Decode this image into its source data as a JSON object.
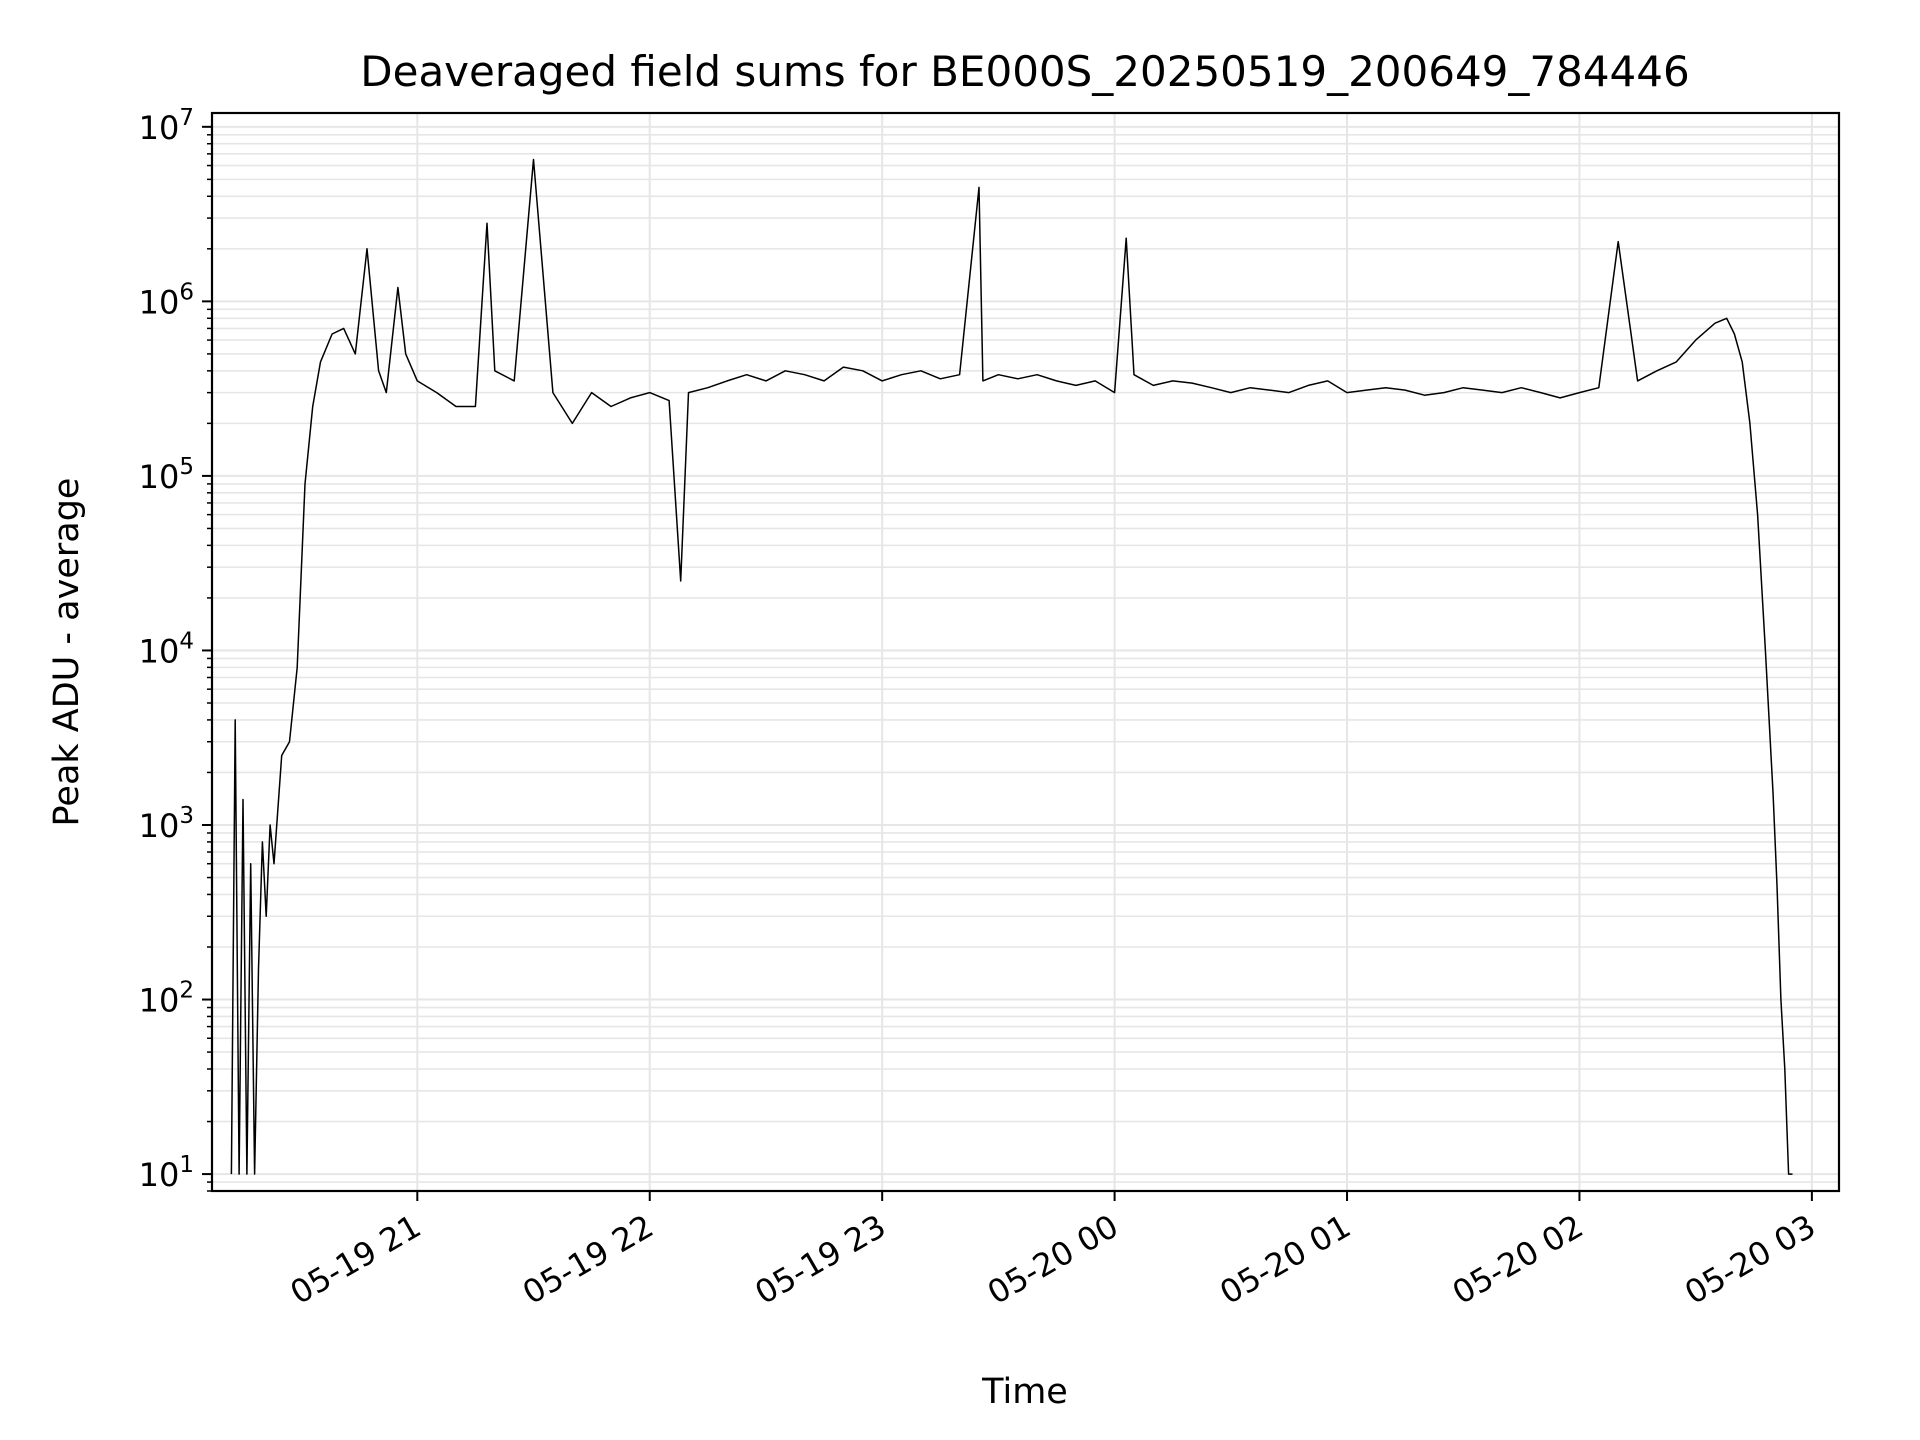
{
  "chart_data": {
    "type": "line",
    "title": "Deaveraged field sums for BE000S_20250519_200649_784446",
    "xlabel": "Time",
    "ylabel": "Peak ADU - average",
    "yscale": "log",
    "grid": true,
    "line_color": "#000000",
    "grid_color": "#e6e6e6",
    "ylim": [
      8,
      12000000
    ],
    "xlim": [
      "05-19 20:07",
      "05-20 03:07"
    ],
    "y_ticks": [
      {
        "value": 10,
        "base": "10",
        "exp": "1"
      },
      {
        "value": 100,
        "base": "10",
        "exp": "2"
      },
      {
        "value": 1000,
        "base": "10",
        "exp": "3"
      },
      {
        "value": 10000,
        "base": "10",
        "exp": "4"
      },
      {
        "value": 100000,
        "base": "10",
        "exp": "5"
      },
      {
        "value": 1000000,
        "base": "10",
        "exp": "6"
      },
      {
        "value": 10000000,
        "base": "10",
        "exp": "7"
      }
    ],
    "x_ticks": [
      {
        "time": "05-19 21:00",
        "label": "05-19 21"
      },
      {
        "time": "05-19 22:00",
        "label": "05-19 22"
      },
      {
        "time": "05-19 23:00",
        "label": "05-19 23"
      },
      {
        "time": "05-20 00:00",
        "label": "05-20 00"
      },
      {
        "time": "05-20 01:00",
        "label": "05-20 01"
      },
      {
        "time": "05-20 02:00",
        "label": "05-20 02"
      },
      {
        "time": "05-20 03:00",
        "label": "05-20 03"
      }
    ],
    "series": [
      {
        "x": [
          "05-19 20:12",
          "05-19 20:13",
          "05-19 20:14",
          "05-19 20:15",
          "05-19 20:16",
          "05-19 20:17",
          "05-19 20:18",
          "05-19 20:19",
          "05-19 20:20",
          "05-19 20:21",
          "05-19 20:22",
          "05-19 20:23",
          "05-19 20:25",
          "05-19 20:27",
          "05-19 20:29",
          "05-19 20:31",
          "05-19 20:33",
          "05-19 20:35",
          "05-19 20:38",
          "05-19 20:41",
          "05-19 20:44",
          "05-19 20:47",
          "05-19 20:50",
          "05-19 20:52",
          "05-19 20:55",
          "05-19 20:57",
          "05-19 21:00",
          "05-19 21:05",
          "05-19 21:10",
          "05-19 21:15",
          "05-19 21:18",
          "05-19 21:20",
          "05-19 21:25",
          "05-19 21:30",
          "05-19 21:35",
          "05-19 21:40",
          "05-19 21:45",
          "05-19 21:50",
          "05-19 21:55",
          "05-19 22:00",
          "05-19 22:05",
          "05-19 22:08",
          "05-19 22:10",
          "05-19 22:15",
          "05-19 22:20",
          "05-19 22:25",
          "05-19 22:30",
          "05-19 22:35",
          "05-19 22:40",
          "05-19 22:45",
          "05-19 22:50",
          "05-19 22:55",
          "05-19 23:00",
          "05-19 23:05",
          "05-19 23:10",
          "05-19 23:15",
          "05-19 23:20",
          "05-19 23:25",
          "05-19 23:26",
          "05-19 23:30",
          "05-19 23:35",
          "05-19 23:40",
          "05-19 23:45",
          "05-19 23:50",
          "05-19 23:55",
          "05-20 00:00",
          "05-20 00:03",
          "05-20 00:05",
          "05-20 00:10",
          "05-20 00:15",
          "05-20 00:20",
          "05-20 00:25",
          "05-20 00:30",
          "05-20 00:35",
          "05-20 00:40",
          "05-20 00:45",
          "05-20 00:50",
          "05-20 00:55",
          "05-20 01:00",
          "05-20 01:05",
          "05-20 01:10",
          "05-20 01:15",
          "05-20 01:20",
          "05-20 01:25",
          "05-20 01:30",
          "05-20 01:35",
          "05-20 01:40",
          "05-20 01:45",
          "05-20 01:50",
          "05-20 01:55",
          "05-20 02:00",
          "05-20 02:05",
          "05-20 02:10",
          "05-20 02:15",
          "05-20 02:20",
          "05-20 02:25",
          "05-20 02:30",
          "05-20 02:35",
          "05-20 02:38",
          "05-20 02:40",
          "05-20 02:42",
          "05-20 02:44",
          "05-20 02:46",
          "05-20 02:48",
          "05-20 02:50",
          "05-20 02:51",
          "05-20 02:52",
          "05-20 02:53",
          "05-20 02:54",
          "05-20 02:55"
        ],
        "y": [
          10,
          4000,
          10,
          1400,
          10,
          600,
          10,
          150,
          800,
          300,
          1000,
          600,
          2500,
          3000,
          8000,
          90000,
          250000,
          450000,
          650000,
          700000,
          500000,
          2000000,
          400000,
          300000,
          1200000,
          500000,
          350000,
          300000,
          250000,
          250000,
          2800000,
          400000,
          350000,
          6500000,
          300000,
          200000,
          300000,
          250000,
          280000,
          300000,
          270000,
          25000,
          300000,
          320000,
          350000,
          380000,
          350000,
          400000,
          380000,
          350000,
          420000,
          400000,
          350000,
          380000,
          400000,
          360000,
          380000,
          4500000,
          350000,
          380000,
          360000,
          380000,
          350000,
          330000,
          350000,
          300000,
          2300000,
          380000,
          330000,
          350000,
          340000,
          320000,
          300000,
          320000,
          310000,
          300000,
          330000,
          350000,
          300000,
          310000,
          320000,
          310000,
          290000,
          300000,
          320000,
          310000,
          300000,
          320000,
          300000,
          280000,
          300000,
          320000,
          2200000,
          350000,
          400000,
          450000,
          600000,
          750000,
          800000,
          650000,
          450000,
          200000,
          60000,
          10000,
          1500,
          450,
          100,
          40,
          10,
          10
        ]
      }
    ]
  }
}
